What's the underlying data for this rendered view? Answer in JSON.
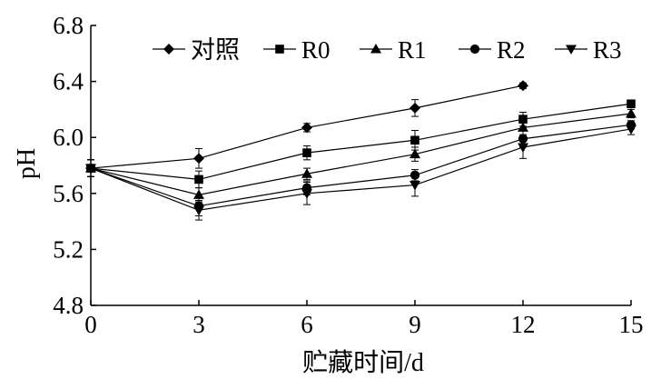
{
  "chart_data": {
    "type": "line",
    "title": "",
    "xlabel": "贮藏时间/d",
    "ylabel": "pH",
    "x": [
      0,
      3,
      6,
      9,
      12,
      15
    ],
    "xticks": [
      "0",
      "3",
      "6",
      "9",
      "12",
      "15"
    ],
    "yticks": [
      "4.8",
      "5.2",
      "5.6",
      "6.0",
      "6.4",
      "6.8"
    ],
    "xlim": [
      0,
      15
    ],
    "ylim": [
      4.8,
      6.8
    ],
    "grid": false,
    "legend_position": "top",
    "series": [
      {
        "name": "对照",
        "marker": "diamond",
        "values": [
          5.78,
          5.85,
          6.07,
          6.21,
          6.37,
          null
        ],
        "errors": [
          0.06,
          0.07,
          0.03,
          0.06,
          0.02,
          null
        ]
      },
      {
        "name": "R0",
        "marker": "square",
        "values": [
          5.78,
          5.7,
          5.89,
          5.98,
          6.13,
          6.24
        ],
        "errors": [
          0.06,
          0.06,
          0.05,
          0.07,
          0.05,
          0.02
        ]
      },
      {
        "name": "R1",
        "marker": "triangle-up",
        "values": [
          5.78,
          5.59,
          5.74,
          5.88,
          6.07,
          6.17
        ],
        "errors": [
          0.06,
          0.05,
          0.04,
          0.05,
          0.05,
          0.03
        ]
      },
      {
        "name": "R2",
        "marker": "circle",
        "values": [
          5.78,
          5.51,
          5.64,
          5.73,
          5.99,
          6.09
        ],
        "errors": [
          0.06,
          0.07,
          0.05,
          0.04,
          0.06,
          0.03
        ]
      },
      {
        "name": "R3",
        "marker": "triangle-down",
        "values": [
          5.78,
          5.48,
          5.6,
          5.66,
          5.93,
          6.06
        ],
        "errors": [
          0.06,
          0.07,
          0.08,
          0.08,
          0.08,
          0.04
        ]
      }
    ]
  }
}
